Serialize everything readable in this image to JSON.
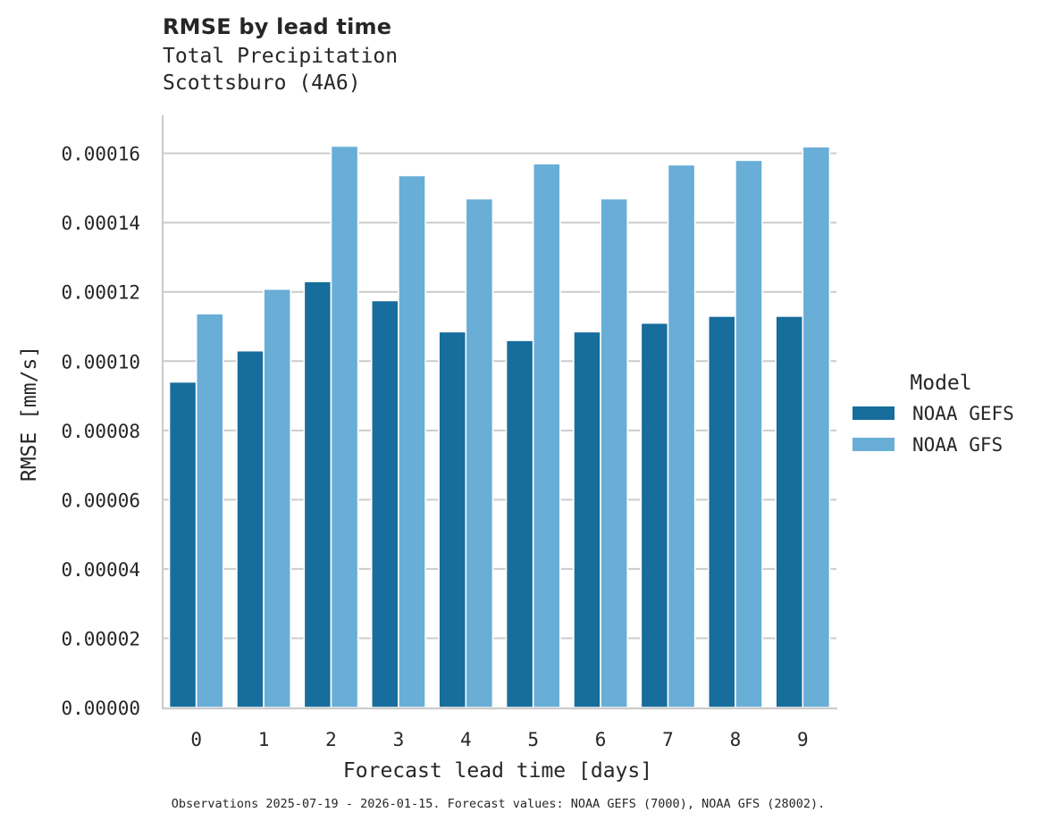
{
  "header": {
    "title": "RMSE by lead time",
    "subtitle_line1": "Total Precipitation",
    "subtitle_line2": "Scottsburo (4A6)"
  },
  "footer": {
    "note": "Observations 2025-07-19 - 2026-01-15. Forecast values: NOAA GEFS (7000), NOAA GFS (28002)."
  },
  "colors": {
    "NOAA GEFS": "#176d9c",
    "NOAA GFS": "#68aed7",
    "grid": "#cccccc",
    "axis": "#cccccc",
    "text": "#262626"
  },
  "chart_data": {
    "type": "bar",
    "title": "RMSE by lead time",
    "subtitle": "Total Precipitation\nScottsburo (4A6)",
    "xlabel": "Forecast lead time [days]",
    "ylabel": "RMSE [mm/s]",
    "categories": [
      "0",
      "1",
      "2",
      "3",
      "4",
      "5",
      "6",
      "7",
      "8",
      "9"
    ],
    "series": [
      {
        "name": "NOAA GEFS",
        "values": [
          9.4e-05,
          0.000103,
          0.000123,
          0.0001175,
          0.0001085,
          0.000106,
          0.0001085,
          0.000111,
          0.000113,
          0.000113
        ]
      },
      {
        "name": "NOAA GFS",
        "values": [
          0.0001137,
          0.0001208,
          0.0001621,
          0.0001536,
          0.0001469,
          0.000157,
          0.0001469,
          0.0001567,
          0.000158,
          0.0001619
        ]
      }
    ],
    "yticks": [
      0.0,
      2e-05,
      4e-05,
      6e-05,
      8e-05,
      0.0001,
      0.00012,
      0.00014,
      0.00016
    ],
    "ytick_labels": [
      "0.00000",
      "0.00002",
      "0.00004",
      "0.00006",
      "0.00008",
      "0.00010",
      "0.00012",
      "0.00014",
      "0.00016"
    ],
    "ylim": [
      0,
      0.000171
    ],
    "grid": "horizontal",
    "legend": {
      "title": "Model",
      "position": "right",
      "entries": [
        "NOAA GEFS",
        "NOAA GFS"
      ]
    }
  }
}
